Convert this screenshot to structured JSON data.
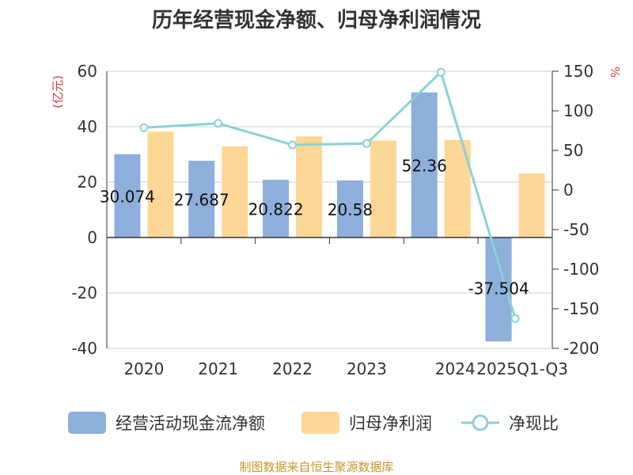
{
  "chart_data": {
    "type": "bar",
    "title": "历年经营现金净额、归母净利润情况",
    "categories": [
      "2020",
      "2021",
      "2022",
      "2023",
      "2024",
      "2025Q1-Q3"
    ],
    "series": [
      {
        "name": "经营活动现金流净额",
        "type": "bar",
        "axis": "left",
        "color": "#8eaedc",
        "values": [
          30.074,
          27.687,
          20.822,
          20.58,
          52.36,
          -37.504
        ],
        "labels": [
          "30.074",
          "27.687",
          "20.822",
          "20.58",
          "52.36",
          "-37.504"
        ]
      },
      {
        "name": "归母净利润",
        "type": "bar",
        "axis": "left",
        "color": "#fdd796",
        "values": [
          38.2,
          32.9,
          36.5,
          35.0,
          35.2,
          23.1
        ]
      },
      {
        "name": "净现比",
        "type": "line",
        "axis": "right",
        "color": "#8ad2d6",
        "values": [
          78.7,
          84.2,
          57.0,
          58.8,
          148.8,
          -162.3
        ]
      }
    ],
    "left_axis": {
      "unit": "(亿元)",
      "ylim": [
        -40,
        60
      ],
      "ticks": [
        "60",
        "40",
        "20",
        "0",
        "-20",
        "-40"
      ]
    },
    "right_axis": {
      "unit": "%",
      "ylim": [
        -200,
        150
      ],
      "ticks": [
        "150",
        "100",
        "50",
        "0",
        "-50",
        "-100",
        "-150",
        "-200"
      ]
    },
    "grid": true,
    "legend": "bottom"
  },
  "footer": {
    "source": "制图数据来自恒生聚源数据库"
  }
}
